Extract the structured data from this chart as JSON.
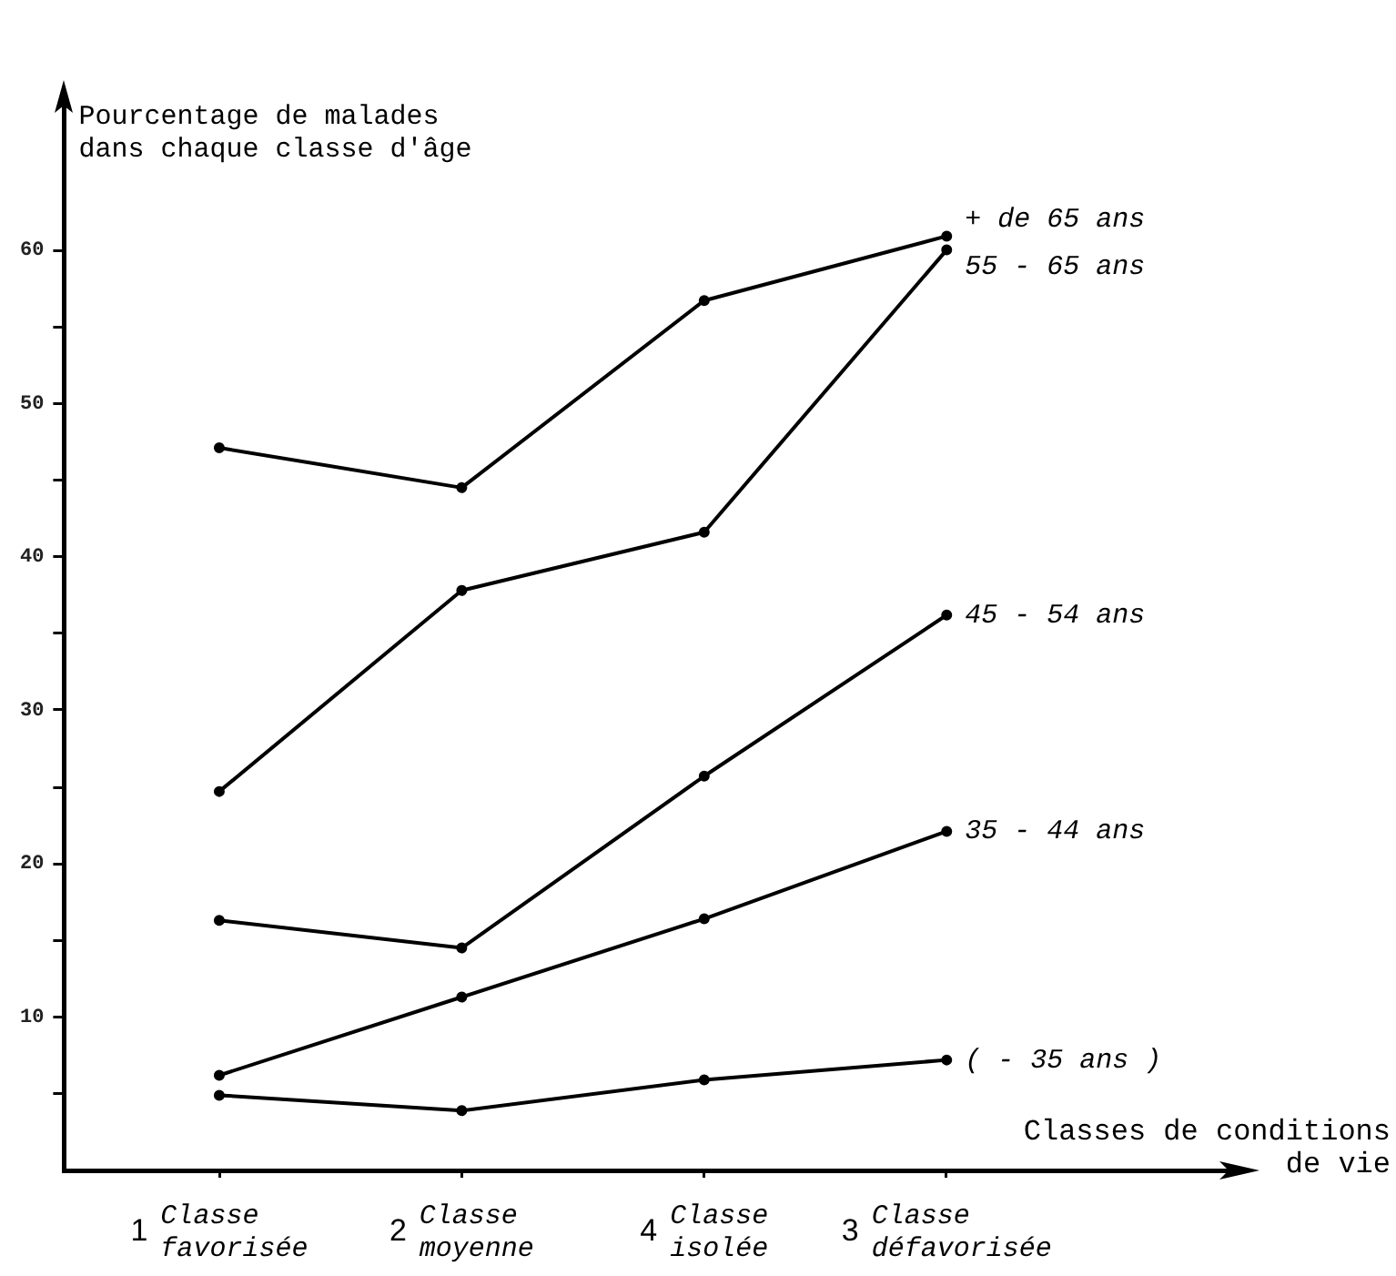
{
  "chart_data": {
    "type": "line",
    "xlabel": "Classes de conditions de vie",
    "ylabel": "Pourcentage de malades dans chaque classe d'âge",
    "categories": [
      "1 Classe favorisée",
      "2 Classe moyenne",
      "4 Classe isolée",
      "3 Classe défavorisée"
    ],
    "series": [
      {
        "name": "+ de 65 ans",
        "color": "#000000",
        "values": [
          47.1,
          44.5,
          56.7,
          60.9
        ]
      },
      {
        "name": "55 - 65 ans",
        "color": "#000000",
        "values": [
          24.7,
          37.8,
          41.6,
          60.0
        ]
      },
      {
        "name": "45 - 54 ans",
        "color": "#000000",
        "values": [
          16.3,
          14.5,
          25.7,
          36.2
        ]
      },
      {
        "name": "35 - 44 ans",
        "color": "#000000",
        "values": [
          6.2,
          11.3,
          16.4,
          22.1
        ]
      },
      {
        "name": "( - 35 ans )",
        "color": "#000000",
        "values": [
          4.9,
          3.9,
          5.9,
          7.2
        ]
      }
    ],
    "ylim": [
      0,
      70
    ],
    "yticks": [
      {
        "value": 5,
        "label": null
      },
      10,
      {
        "value": 15,
        "label": null
      },
      20,
      {
        "value": 25,
        "label": null
      },
      30,
      {
        "value": 35,
        "label": null
      },
      40,
      {
        "value": 45,
        "label": null
      },
      50,
      {
        "value": 55,
        "label": null
      },
      60
    ],
    "marker": "circle",
    "line_style": "solid"
  }
}
